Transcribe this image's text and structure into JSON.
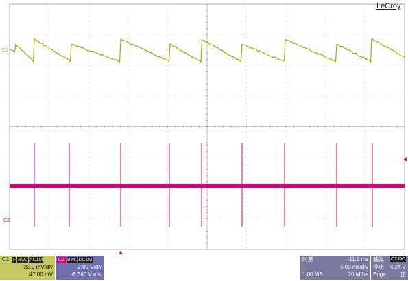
{
  "brand": "LeCroy",
  "channels": {
    "c1_marker": "C1",
    "c2_marker": "C2"
  },
  "c1_panel": {
    "label": "C1",
    "tags": [
      "F",
      "BwL",
      "AC1M"
    ],
    "volts_div": "20.0 mV/div",
    "offset": "47.00 mV"
  },
  "c2_panel": {
    "label": "C2",
    "tags": [
      "BwL",
      "DC1M"
    ],
    "volts_div": "2.00 V/div",
    "offset": "-6.360 V ofst"
  },
  "timebase": {
    "title": "时基",
    "delay": "-11.1 ms",
    "time_div": "5.00 ms/div",
    "points": "1.00 MS",
    "sample_rate": "20 MS/s"
  },
  "trigger": {
    "title": "触发",
    "channel_tag": "C2 DC",
    "status": "停止",
    "level": "4.24 V",
    "type": "Edge",
    "slope": "正"
  },
  "colors": {
    "c1": "#a8a800",
    "c2": "#e0007a",
    "grid": "#b0b0b0"
  }
}
